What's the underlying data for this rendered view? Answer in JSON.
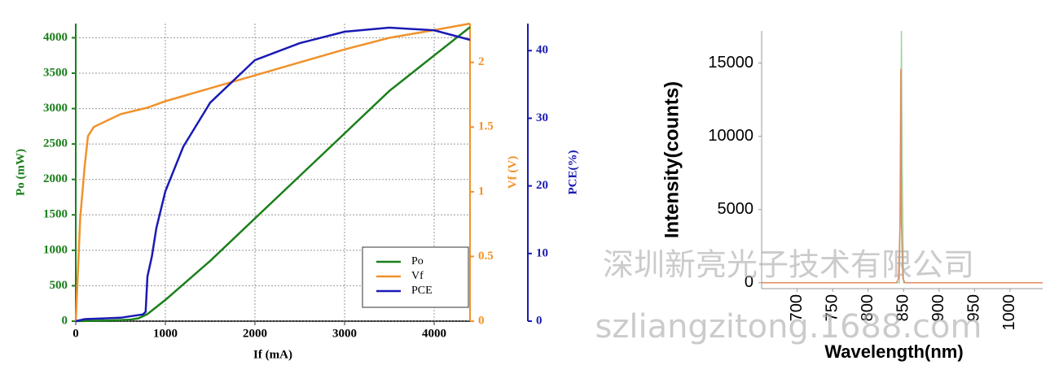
{
  "chart_data": [
    {
      "type": "line",
      "xlabel": "If (mA)",
      "ylabel": "Po (mW)",
      "y2label": "Vf (V)",
      "y3label": "PCE(%)",
      "xlim": [
        0,
        4400
      ],
      "xticks": [
        0,
        1000,
        2000,
        3000,
        4000
      ],
      "ylim": [
        0,
        4200
      ],
      "yticks": [
        0,
        500,
        1000,
        1500,
        2000,
        2500,
        3000,
        3500,
        4000
      ],
      "y2lim": [
        0,
        2.3
      ],
      "y2ticks": [
        0,
        0.5,
        1,
        1.5,
        2
      ],
      "y3lim": [
        0,
        44
      ],
      "y3ticks": [
        0,
        10,
        20,
        30,
        40
      ],
      "grid": true,
      "legend": "lower right",
      "series": [
        {
          "name": "Po",
          "color": "#1a7f1a",
          "axis": "y",
          "x": [
            0,
            200,
            400,
            600,
            700,
            800,
            1000,
            1500,
            2000,
            2500,
            3000,
            3500,
            4000,
            4400
          ],
          "values": [
            0,
            5,
            10,
            20,
            40,
            100,
            300,
            850,
            1450,
            2050,
            2650,
            3250,
            3750,
            4150
          ]
        },
        {
          "name": "Vf",
          "color": "#f0922b",
          "axis": "y2",
          "x": [
            0,
            50,
            100,
            136,
            200,
            500,
            800,
            1000,
            1500,
            2000,
            2500,
            3000,
            3500,
            4000,
            4400
          ],
          "values": [
            0,
            0.8,
            1.2,
            1.43,
            1.5,
            1.6,
            1.65,
            1.7,
            1.8,
            1.9,
            2.0,
            2.1,
            2.19,
            2.25,
            2.3
          ]
        },
        {
          "name": "PCE",
          "color": "#1a1ab4",
          "axis": "y3",
          "x": [
            0,
            100,
            500,
            750,
            780,
            800,
            850,
            900,
            1000,
            1200,
            1500,
            2000,
            2500,
            3000,
            3500,
            4000,
            4400
          ],
          "values": [
            0,
            0.3,
            0.5,
            1,
            1.4,
            6.6,
            9.6,
            13.8,
            19.2,
            25.8,
            32.3,
            38.6,
            41.1,
            42.8,
            43.4,
            43,
            41.6
          ]
        }
      ]
    },
    {
      "type": "line",
      "xlabel": "Wavelength(nm)",
      "ylabel": "Intensity(counts)",
      "xlim": [
        650,
        1046
      ],
      "xticks": [
        700,
        750,
        800,
        850,
        900,
        950,
        1000
      ],
      "ylim": [
        -400,
        17200
      ],
      "yticks": [
        0,
        5000,
        10000,
        15000
      ],
      "grid": false,
      "series": [
        {
          "color": "#9fd49f",
          "axis": "y",
          "x": [
            650,
            844,
            846,
            847,
            848,
            850,
            1046
          ],
          "values": [
            0,
            0,
            8000,
            17200,
            8000,
            0,
            0
          ]
        },
        {
          "color": "#e08a60",
          "axis": "y",
          "x": [
            650,
            840,
            843,
            845,
            846,
            847,
            849,
            852,
            1046
          ],
          "values": [
            0,
            0,
            300,
            4000,
            14600,
            4000,
            300,
            0,
            0
          ]
        }
      ]
    }
  ],
  "watermarks": [
    "深圳新亮光子技术有限公司",
    "szliangzitong.1688.com"
  ]
}
